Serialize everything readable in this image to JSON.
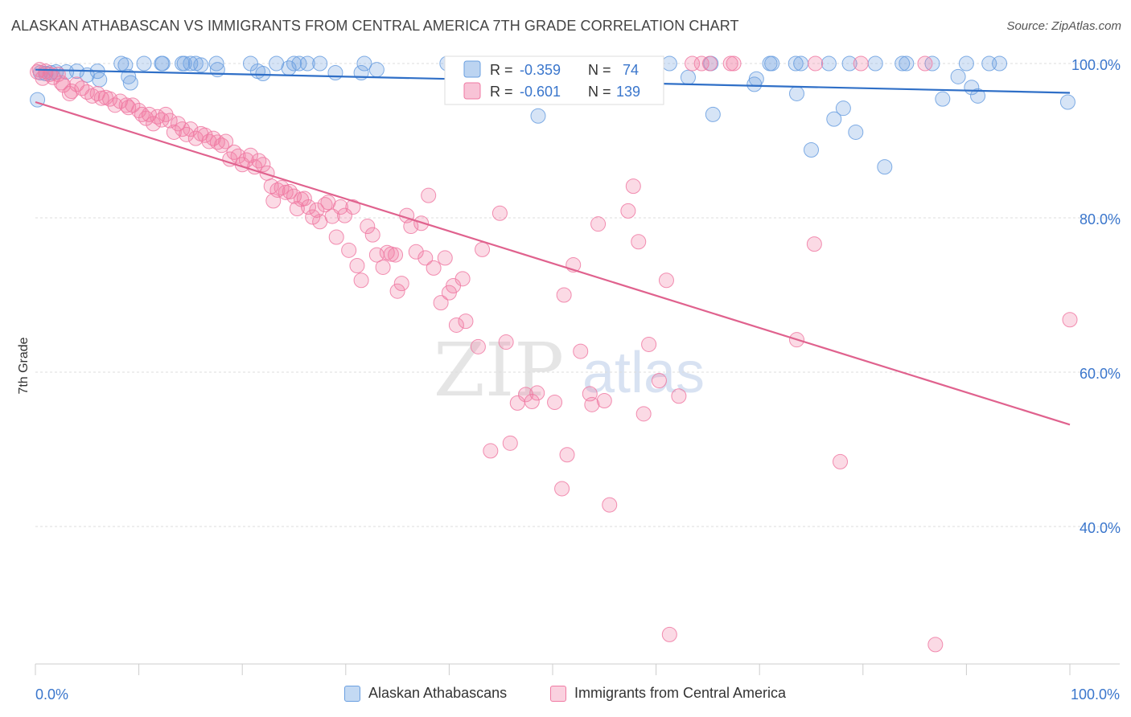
{
  "title": "ALASKAN ATHABASCAN VS IMMIGRANTS FROM CENTRAL AMERICA 7TH GRADE CORRELATION CHART",
  "source": "Source: ZipAtlas.com",
  "watermark": {
    "zip": "ZIP",
    "atlas": "atlas"
  },
  "colors": {
    "blue": "#6a9fe0",
    "pink": "#f07aa3",
    "blue_line": "#2f6fc7",
    "pink_line": "#e0628e",
    "axis_label": "#3a76cc"
  },
  "legend": {
    "r_label": "R =",
    "n_label": "N =",
    "rows": [
      {
        "r": "-0.359",
        "n": "74"
      },
      {
        "r": "-0.601",
        "n": "139"
      }
    ]
  },
  "bottom_legend": [
    "Alaskan Athabascans",
    "Immigrants from Central America"
  ],
  "chart_data": {
    "type": "scatter",
    "title": "ALASKAN ATHABASCAN VS IMMIGRANTS FROM CENTRAL AMERICA 7TH GRADE CORRELATION CHART",
    "xlabel": "",
    "ylabel": "7th Grade",
    "xlim": [
      0,
      100
    ],
    "ylim": [
      20,
      102
    ],
    "x_tick_labels": [
      "0.0%",
      "100.0%"
    ],
    "y_ticks": [
      40,
      60,
      80,
      100
    ],
    "y_tick_labels": [
      "40.0%",
      "60.0%",
      "80.0%",
      "100.0%"
    ],
    "grid": true,
    "legend_position": "top-center",
    "series": [
      {
        "name": "Alaskan Athabascans",
        "color": "#6a9fe0",
        "trend": {
          "x": [
            0,
            100
          ],
          "y": [
            99.2,
            96.2
          ]
        },
        "points": [
          [
            0.2,
            95.3
          ],
          [
            0.5,
            98.8
          ],
          [
            1,
            98.7
          ],
          [
            1.5,
            98.8
          ],
          [
            2,
            98.9
          ],
          [
            3,
            98.9
          ],
          [
            4,
            99
          ],
          [
            5,
            98.5
          ],
          [
            6,
            99
          ],
          [
            6.2,
            97.9
          ],
          [
            8.3,
            100
          ],
          [
            8.7,
            99.8
          ],
          [
            9,
            98.3
          ],
          [
            9.2,
            97.5
          ],
          [
            10.5,
            100
          ],
          [
            12.2,
            100
          ],
          [
            12.3,
            100
          ],
          [
            14.2,
            100
          ],
          [
            14.4,
            100
          ],
          [
            15,
            100
          ],
          [
            15.5,
            100
          ],
          [
            16,
            99.8
          ],
          [
            17.5,
            100
          ],
          [
            17.6,
            99.2
          ],
          [
            20.8,
            100
          ],
          [
            21.5,
            99
          ],
          [
            22,
            98.7
          ],
          [
            23.3,
            100
          ],
          [
            24.5,
            99.4
          ],
          [
            25,
            100
          ],
          [
            25.5,
            100
          ],
          [
            26.3,
            100
          ],
          [
            27.5,
            100
          ],
          [
            29,
            98.8
          ],
          [
            31.5,
            98.8
          ],
          [
            31.8,
            100
          ],
          [
            33,
            99.2
          ],
          [
            39.8,
            100
          ],
          [
            48.6,
            93.2
          ],
          [
            52,
            96.8
          ],
          [
            61.3,
            100
          ],
          [
            63.1,
            98.2
          ],
          [
            65.3,
            100
          ],
          [
            65.5,
            93.4
          ],
          [
            69.5,
            97.3
          ],
          [
            69.7,
            98
          ],
          [
            71,
            100
          ],
          [
            71.2,
            100
          ],
          [
            73.5,
            100
          ],
          [
            73.6,
            96.1
          ],
          [
            74,
            100
          ],
          [
            75,
            88.8
          ],
          [
            76.7,
            100
          ],
          [
            77.2,
            92.8
          ],
          [
            78.1,
            94.2
          ],
          [
            78.7,
            100
          ],
          [
            79.3,
            91.1
          ],
          [
            81.2,
            100
          ],
          [
            82.1,
            86.6
          ],
          [
            83.8,
            100
          ],
          [
            84.2,
            100
          ],
          [
            86.7,
            100
          ],
          [
            87.7,
            95.4
          ],
          [
            89.2,
            98.3
          ],
          [
            90,
            100
          ],
          [
            90.5,
            96.9
          ],
          [
            91.1,
            95.8
          ],
          [
            92.2,
            100
          ],
          [
            93.2,
            100
          ],
          [
            99.8,
            95
          ]
        ]
      },
      {
        "name": "Immigrants from Central America",
        "color": "#f07aa3",
        "trend": {
          "x": [
            0,
            100
          ],
          "y": [
            95,
            53.2
          ]
        },
        "points": [
          [
            0.2,
            98.9
          ],
          [
            0.4,
            99.2
          ],
          [
            0.7,
            98.1
          ],
          [
            1,
            99
          ],
          [
            1.4,
            98.6
          ],
          [
            1.7,
            98.2
          ],
          [
            2.2,
            98.6
          ],
          [
            2.5,
            97.5
          ],
          [
            2.7,
            97.2
          ],
          [
            3.3,
            96.1
          ],
          [
            3.5,
            96.4
          ],
          [
            4,
            97.3
          ],
          [
            4.5,
            96.8
          ],
          [
            5,
            96.3
          ],
          [
            5.5,
            95.8
          ],
          [
            6,
            96.1
          ],
          [
            6.4,
            95.5
          ],
          [
            6.8,
            95.6
          ],
          [
            7.2,
            95.4
          ],
          [
            7.7,
            94.6
          ],
          [
            8.2,
            95.1
          ],
          [
            8.8,
            94.6
          ],
          [
            9,
            94.3
          ],
          [
            9.4,
            94.6
          ],
          [
            10,
            93.9
          ],
          [
            10.3,
            93.4
          ],
          [
            10.7,
            92.9
          ],
          [
            11,
            93.4
          ],
          [
            11.4,
            92.2
          ],
          [
            11.8,
            93.1
          ],
          [
            12.2,
            92.7
          ],
          [
            12.6,
            93.4
          ],
          [
            13,
            92.6
          ],
          [
            13.4,
            91.1
          ],
          [
            13.8,
            92.2
          ],
          [
            14.2,
            91.5
          ],
          [
            14.6,
            90.8
          ],
          [
            15,
            91.5
          ],
          [
            15.5,
            90.3
          ],
          [
            16,
            90.9
          ],
          [
            16.4,
            90.7
          ],
          [
            16.8,
            89.9
          ],
          [
            17.2,
            90.3
          ],
          [
            17.6,
            89.8
          ],
          [
            18,
            89.4
          ],
          [
            18.4,
            89.9
          ],
          [
            18.8,
            87.6
          ],
          [
            19.2,
            88.5
          ],
          [
            19.6,
            88
          ],
          [
            20,
            86.9
          ],
          [
            20.4,
            87.5
          ],
          [
            20.8,
            88.1
          ],
          [
            21.2,
            86.6
          ],
          [
            21.6,
            87.4
          ],
          [
            22,
            86.9
          ],
          [
            22.4,
            85.8
          ],
          [
            22.8,
            84.1
          ],
          [
            23,
            82.2
          ],
          [
            23.4,
            83.6
          ],
          [
            23.8,
            83.9
          ],
          [
            24.2,
            83.3
          ],
          [
            24.6,
            83.4
          ],
          [
            25,
            82.8
          ],
          [
            25.3,
            81.2
          ],
          [
            25.7,
            82.4
          ],
          [
            26,
            82.5
          ],
          [
            26.4,
            81.4
          ],
          [
            26.8,
            80.1
          ],
          [
            27.2,
            81
          ],
          [
            27.5,
            79.5
          ],
          [
            28,
            81.7
          ],
          [
            28.3,
            82
          ],
          [
            28.7,
            80.2
          ],
          [
            29.1,
            77.5
          ],
          [
            29.5,
            81.4
          ],
          [
            29.9,
            80.3
          ],
          [
            30.3,
            75.8
          ],
          [
            30.7,
            81.4
          ],
          [
            31.1,
            73.8
          ],
          [
            31.5,
            71.9
          ],
          [
            32.1,
            78.9
          ],
          [
            32.6,
            77.8
          ],
          [
            33,
            75.2
          ],
          [
            33.6,
            73.6
          ],
          [
            34,
            75.5
          ],
          [
            34.4,
            75.3
          ],
          [
            34.8,
            75.2
          ],
          [
            35,
            70.5
          ],
          [
            35.4,
            71.5
          ],
          [
            35.9,
            80.3
          ],
          [
            36.3,
            78.9
          ],
          [
            36.8,
            75.6
          ],
          [
            37.3,
            79.3
          ],
          [
            37.7,
            74.8
          ],
          [
            38,
            82.9
          ],
          [
            38.5,
            73.5
          ],
          [
            39.2,
            69
          ],
          [
            39.6,
            74.8
          ],
          [
            40,
            70.3
          ],
          [
            40.4,
            71.2
          ],
          [
            40.7,
            66.1
          ],
          [
            41.3,
            72.1
          ],
          [
            41.6,
            66.6
          ],
          [
            42.8,
            63.3
          ],
          [
            43.2,
            75.9
          ],
          [
            44,
            49.8
          ],
          [
            44.9,
            80.6
          ],
          [
            45.5,
            63.9
          ],
          [
            45.9,
            50.8
          ],
          [
            46.6,
            56
          ],
          [
            47.4,
            57.1
          ],
          [
            48,
            56.2
          ],
          [
            48.5,
            57.3
          ],
          [
            50.2,
            56.1
          ],
          [
            50.9,
            44.9
          ],
          [
            51.1,
            70
          ],
          [
            51.4,
            49.3
          ],
          [
            52,
            73.9
          ],
          [
            52.7,
            62.7
          ],
          [
            53.6,
            57.2
          ],
          [
            53.8,
            55.8
          ],
          [
            54.4,
            79.2
          ],
          [
            55,
            56.3
          ],
          [
            55.5,
            42.8
          ],
          [
            57.3,
            80.9
          ],
          [
            57.8,
            84.1
          ],
          [
            58.3,
            76.9
          ],
          [
            58.8,
            54.6
          ],
          [
            59.3,
            63.6
          ],
          [
            60.3,
            58.9
          ],
          [
            61,
            71.9
          ],
          [
            61.3,
            26
          ],
          [
            62.2,
            56.9
          ],
          [
            63.5,
            100
          ],
          [
            64.4,
            100
          ],
          [
            65.2,
            100
          ],
          [
            67.2,
            100
          ],
          [
            67.5,
            100
          ],
          [
            73.6,
            64.2
          ],
          [
            75.3,
            76.6
          ],
          [
            75.4,
            100
          ],
          [
            77.8,
            48.4
          ],
          [
            79.8,
            100
          ],
          [
            86,
            100
          ],
          [
            87,
            24.7
          ],
          [
            100,
            66.8
          ]
        ]
      }
    ]
  }
}
